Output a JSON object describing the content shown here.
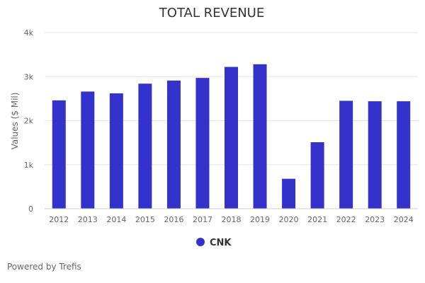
{
  "chart_data": {
    "type": "bar",
    "title": "TOTAL REVENUE",
    "xlabel": "",
    "ylabel": "Values ($ Mil)",
    "ylim": [
      0,
      4000
    ],
    "yticks": [
      {
        "value": 0,
        "label": "0"
      },
      {
        "value": 1000,
        "label": "1k"
      },
      {
        "value": 2000,
        "label": "2k"
      },
      {
        "value": 3000,
        "label": "3k"
      },
      {
        "value": 4000,
        "label": "4k"
      }
    ],
    "grid": true,
    "legend_position": "bottom-center",
    "categories": [
      "2012",
      "2013",
      "2014",
      "2015",
      "2016",
      "2017",
      "2018",
      "2019",
      "2020",
      "2021",
      "2022",
      "2023",
      "2024"
    ],
    "series": [
      {
        "name": "CNK",
        "color": "#3333cc",
        "values": [
          2460,
          2660,
          2620,
          2840,
          2910,
          2970,
          3220,
          3280,
          680,
          1510,
          2450,
          2440,
          2440
        ]
      }
    ]
  },
  "footer": {
    "credit": "Powered by Trefis"
  },
  "colors": {
    "title": "#333333",
    "axis_text": "#666666",
    "grid": "#e6e6e6",
    "axis_line": "#cccccc"
  }
}
